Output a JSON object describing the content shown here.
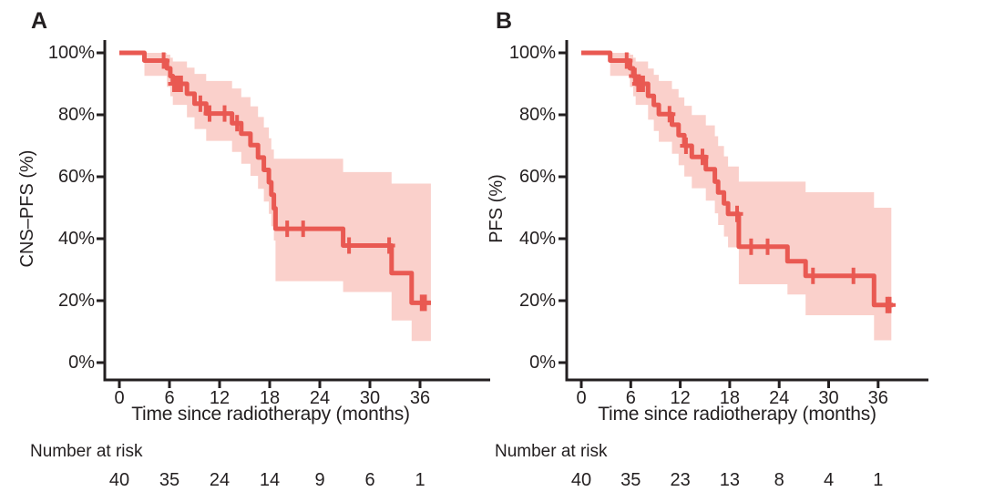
{
  "figure": {
    "colors": {
      "line": "#e95952",
      "band": "#fad0cb",
      "axis": "#231f20",
      "text": "#231f20"
    }
  },
  "chart_data": [
    {
      "type": "line",
      "panel": "A",
      "title": "",
      "ylabel": "CNS–PFS (%)",
      "xlabel": "Time since radiotherapy (months)",
      "risk_label": "Number at risk",
      "yticks": [
        "100%",
        "80%",
        "60%",
        "40%",
        "20%",
        "0%"
      ],
      "xticks": [
        "0",
        "6",
        "12",
        "18",
        "24",
        "30",
        "36"
      ],
      "xlim": [
        0,
        44
      ],
      "ylim": [
        0,
        100
      ],
      "grid": false,
      "legend": "none",
      "km_steps": [
        [
          0,
          100
        ],
        [
          3.0,
          97.5
        ],
        [
          5.7,
          95.0
        ],
        [
          6.1,
          92.5
        ],
        [
          6.4,
          90.0
        ],
        [
          8.1,
          86.8
        ],
        [
          9.0,
          83.6
        ],
        [
          10.4,
          80.4
        ],
        [
          13.5,
          77.3
        ],
        [
          14.6,
          73.9
        ],
        [
          15.7,
          70.2
        ],
        [
          16.6,
          66.2
        ],
        [
          17.3,
          62.2
        ],
        [
          17.9,
          58.2
        ],
        [
          18.2,
          54.2
        ],
        [
          18.5,
          49.8
        ],
        [
          18.7,
          43.2
        ],
        [
          26.8,
          37.8
        ],
        [
          32.6,
          28.9
        ],
        [
          35.0,
          19.3
        ]
      ],
      "end_time": 37.3,
      "censor_marks": [
        [
          5.3,
          97.5
        ],
        [
          6.55,
          90.0
        ],
        [
          6.85,
          90.0
        ],
        [
          7.15,
          90.0
        ],
        [
          7.4,
          90.0
        ],
        [
          9.7,
          83.6
        ],
        [
          10.8,
          80.4
        ],
        [
          12.6,
          80.4
        ],
        [
          14.1,
          77.3
        ],
        [
          20.1,
          43.2
        ],
        [
          22.0,
          43.2
        ],
        [
          27.5,
          37.8
        ],
        [
          32.3,
          37.8
        ],
        [
          36.2,
          19.3
        ],
        [
          36.6,
          19.3
        ]
      ],
      "ci_band": [
        [
          3.0,
          100,
          92.6
        ],
        [
          5.7,
          99.4,
          89.0
        ],
        [
          6.1,
          98.4,
          86.0
        ],
        [
          6.4,
          97.2,
          83.2
        ],
        [
          8.1,
          95.2,
          79.2
        ],
        [
          9.0,
          93.2,
          75.4
        ],
        [
          10.4,
          90.9,
          71.6
        ],
        [
          13.5,
          88.5,
          68.0
        ],
        [
          14.6,
          85.7,
          64.2
        ],
        [
          15.7,
          82.7,
          60.3
        ],
        [
          16.6,
          79.3,
          56.1
        ],
        [
          17.3,
          75.9,
          52.0
        ],
        [
          17.9,
          72.4,
          48.0
        ],
        [
          18.2,
          68.8,
          44.0
        ],
        [
          18.5,
          65.8,
          39.4
        ],
        [
          18.7,
          65.8,
          26.3
        ],
        [
          26.8,
          61.5,
          22.8
        ],
        [
          32.6,
          57.8,
          13.6
        ],
        [
          35.0,
          57.8,
          7.0
        ]
      ],
      "ci_end": 37.3,
      "number_at_risk": [
        "40",
        "35",
        "24",
        "14",
        "9",
        "6",
        "1"
      ]
    },
    {
      "type": "line",
      "panel": "B",
      "title": "",
      "ylabel": "PFS (%)",
      "xlabel": "Time since radiotherapy (months)",
      "risk_label": "Number at risk",
      "yticks": [
        "100%",
        "80%",
        "60%",
        "40%",
        "20%",
        "0%"
      ],
      "xticks": [
        "0",
        "6",
        "12",
        "18",
        "24",
        "30",
        "36"
      ],
      "xlim": [
        0,
        42
      ],
      "ylim": [
        0,
        100
      ],
      "grid": false,
      "legend": "none",
      "km_steps": [
        [
          0,
          100
        ],
        [
          3.5,
          97.5
        ],
        [
          5.9,
          95.0
        ],
        [
          6.3,
          92.5
        ],
        [
          6.6,
          90.0
        ],
        [
          8.1,
          86.1
        ],
        [
          8.8,
          83.2
        ],
        [
          9.4,
          80.2
        ],
        [
          11.0,
          76.8
        ],
        [
          11.8,
          73.4
        ],
        [
          12.5,
          70.0
        ],
        [
          13.4,
          66.4
        ],
        [
          15.1,
          62.4
        ],
        [
          16.2,
          58.4
        ],
        [
          16.6,
          54.9
        ],
        [
          17.3,
          51.4
        ],
        [
          17.8,
          48.0
        ],
        [
          19.1,
          37.4
        ],
        [
          25.0,
          32.7
        ],
        [
          27.2,
          28.0
        ],
        [
          35.5,
          18.6
        ]
      ],
      "end_time": 37.8,
      "censor_marks": [
        [
          5.5,
          97.5
        ],
        [
          6.5,
          92.5
        ],
        [
          6.9,
          90.0
        ],
        [
          7.2,
          90.0
        ],
        [
          7.5,
          90.0
        ],
        [
          10.7,
          80.2
        ],
        [
          12.7,
          70.0
        ],
        [
          14.7,
          66.4
        ],
        [
          18.9,
          48.0
        ],
        [
          20.6,
          37.4
        ],
        [
          22.6,
          37.4
        ],
        [
          28.1,
          28.0
        ],
        [
          33.0,
          28.0
        ],
        [
          37.1,
          18.6
        ],
        [
          37.4,
          18.6
        ]
      ],
      "ci_band": [
        [
          3.5,
          100,
          92.6
        ],
        [
          5.9,
          99.4,
          89.0
        ],
        [
          6.3,
          98.4,
          86.0
        ],
        [
          6.6,
          97.2,
          83.2
        ],
        [
          8.1,
          94.9,
          78.4
        ],
        [
          8.8,
          92.9,
          74.8
        ],
        [
          9.4,
          90.9,
          71.3
        ],
        [
          11.0,
          88.3,
          67.4
        ],
        [
          11.8,
          85.6,
          63.7
        ],
        [
          12.5,
          82.9,
          60.1
        ],
        [
          13.4,
          79.9,
          56.3
        ],
        [
          15.1,
          76.6,
          52.3
        ],
        [
          16.2,
          73.1,
          48.2
        ],
        [
          16.6,
          69.9,
          44.4
        ],
        [
          17.3,
          66.6,
          40.7
        ],
        [
          17.8,
          63.3,
          37.2
        ],
        [
          19.1,
          58.4,
          25.3
        ],
        [
          25.0,
          58.4,
          22.0
        ],
        [
          27.2,
          55.0,
          15.3
        ],
        [
          35.5,
          50.0,
          7.2
        ]
      ],
      "ci_end": 37.6,
      "number_at_risk": [
        "40",
        "35",
        "23",
        "13",
        "8",
        "4",
        "1"
      ]
    }
  ]
}
